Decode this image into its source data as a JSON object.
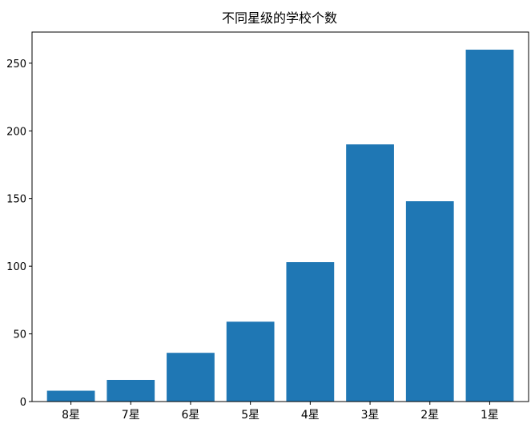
{
  "chart_data": {
    "type": "bar",
    "title": "不同星级的学校个数",
    "xlabel": "",
    "ylabel": "",
    "categories": [
      "8星",
      "7星",
      "6星",
      "5星",
      "4星",
      "3星",
      "2星",
      "1星"
    ],
    "values": [
      8,
      16,
      36,
      59,
      103,
      190,
      148,
      260
    ],
    "ylim": [
      0,
      273
    ],
    "yticks": [
      0,
      50,
      100,
      150,
      200,
      250
    ],
    "grid": false,
    "legend": "none",
    "bar_color": "#1f77b4"
  }
}
